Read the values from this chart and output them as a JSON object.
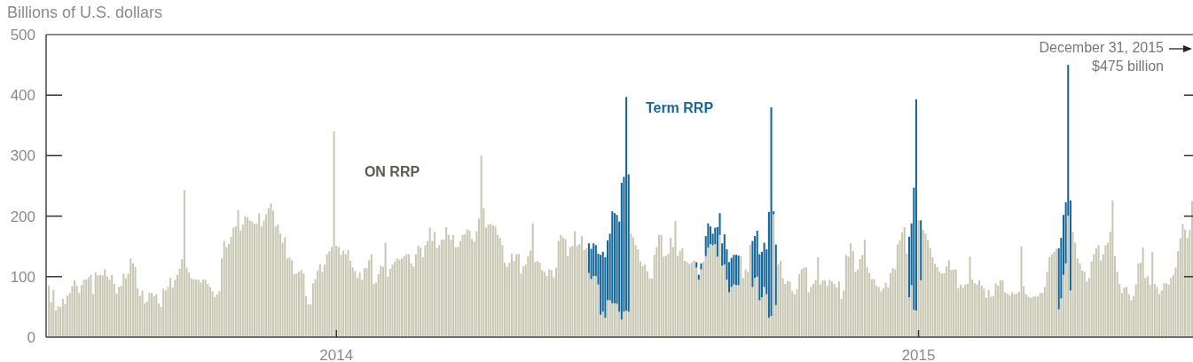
{
  "chart_data": {
    "type": "bar",
    "stacked": true,
    "ylabel": "Billions of U.S. dollars",
    "annotations": [
      "December 31, 2015\n$475 billion"
    ],
    "ylim": [
      0,
      500
    ],
    "yticks": [
      0,
      100,
      200,
      300,
      400,
      500
    ],
    "categories": [
      null,
      null,
      null,
      null,
      null,
      null,
      null,
      null,
      null,
      null,
      null,
      null,
      null,
      null,
      null,
      null,
      null,
      null,
      null,
      null,
      null,
      null,
      null,
      null,
      null,
      null,
      null,
      null,
      null,
      null,
      null,
      null,
      null,
      null,
      null,
      null,
      null,
      null,
      null,
      null,
      null,
      null,
      null,
      null,
      null,
      null,
      null,
      null,
      null,
      null,
      null,
      null,
      null,
      null,
      null,
      null,
      null,
      null,
      null,
      null,
      null,
      null,
      null,
      null,
      null,
      null,
      null,
      null,
      null,
      null,
      null,
      null,
      null,
      null,
      null,
      null,
      null,
      null,
      null,
      null,
      null,
      null,
      null,
      null,
      null,
      null,
      null,
      null,
      null,
      null,
      null,
      null,
      null,
      null,
      null,
      null,
      null,
      null,
      null,
      null,
      null,
      null,
      null,
      null,
      null,
      null,
      null,
      null,
      null,
      null,
      null,
      null,
      null,
      null,
      null,
      null,
      null,
      null,
      null,
      null,
      null,
      null,
      null,
      "2014",
      null,
      null,
      null,
      null,
      null,
      null,
      null,
      null,
      null,
      null,
      null,
      null,
      null,
      null,
      null,
      null,
      null,
      null,
      null,
      null,
      null,
      null,
      null,
      null,
      null,
      null,
      null,
      null,
      null,
      null,
      null,
      null,
      null,
      null,
      null,
      null,
      null,
      null,
      null,
      null,
      null,
      null,
      null,
      null,
      null,
      null,
      null,
      null,
      null,
      null,
      null,
      null,
      null,
      null,
      null,
      null,
      null,
      null,
      null,
      null,
      null,
      null,
      null,
      null,
      null,
      null,
      null,
      null,
      null,
      null,
      null,
      null,
      null,
      null,
      null,
      null,
      null,
      null,
      null,
      null,
      null,
      null,
      null,
      null,
      null,
      null,
      null,
      null,
      null,
      null,
      null,
      null,
      null,
      null,
      null,
      null,
      null,
      null,
      null,
      null,
      null,
      null,
      null,
      null,
      null,
      null,
      null,
      null,
      null,
      null,
      null,
      null,
      null,
      null,
      null,
      null,
      null,
      null,
      null,
      null,
      null,
      null,
      null,
      null,
      null,
      null,
      null,
      null,
      null,
      null,
      null,
      null,
      null,
      null,
      null,
      null,
      null,
      null,
      null,
      null,
      null,
      null,
      null,
      null,
      null,
      null,
      null,
      null,
      null,
      null,
      null,
      null,
      null,
      null,
      null,
      null,
      null,
      null,
      null,
      null,
      null,
      null,
      null,
      null,
      null,
      null,
      null,
      null,
      null,
      null,
      null,
      null,
      null,
      null,
      null,
      null,
      null,
      null,
      null,
      null,
      null,
      null,
      null,
      null,
      null,
      null,
      null,
      null,
      null,
      null,
      null,
      null,
      null,
      null,
      null,
      null,
      null,
      null,
      null,
      null,
      null,
      null,
      null,
      null,
      null,
      null,
      null,
      null,
      null,
      null,
      null,
      null,
      null,
      null,
      null,
      null,
      null,
      null,
      null,
      null,
      null,
      null,
      null,
      null,
      null,
      null,
      null,
      null,
      null,
      null,
      null,
      null,
      null,
      null,
      null,
      null,
      null,
      null,
      null,
      null,
      null,
      null,
      null,
      null,
      null,
      null,
      null,
      null,
      "2015",
      null,
      null,
      null,
      null,
      null,
      null,
      null,
      null,
      null,
      null,
      null,
      null,
      null,
      null,
      null,
      null,
      null,
      null,
      null,
      null,
      null,
      null,
      null,
      null,
      null,
      null,
      null,
      null,
      null,
      null,
      null,
      null,
      null,
      null,
      null,
      null,
      null,
      null,
      null,
      null,
      null,
      null,
      null,
      null,
      null,
      null,
      null,
      null,
      null,
      null,
      null,
      null,
      null,
      null,
      null,
      null,
      null,
      null,
      null,
      null,
      null,
      null,
      null,
      null,
      null,
      null,
      null,
      null,
      null,
      null,
      null,
      null,
      null,
      null,
      null,
      null,
      null,
      null,
      null,
      null,
      null,
      null,
      null,
      null,
      null,
      null,
      null,
      null,
      null,
      null,
      null,
      null,
      null,
      null,
      null,
      null,
      null,
      null,
      null,
      null,
      null,
      null,
      null,
      null,
      null,
      null,
      null,
      null,
      null,
      null,
      null,
      null,
      null,
      null,
      null,
      null,
      null
    ],
    "series": [
      {
        "name": "ON RRP",
        "color": "#c8c8b4",
        "values": [
          85,
          58,
          78,
          44,
          51,
          50,
          63,
          55,
          69,
          73,
          84,
          94,
          85,
          73,
          86,
          95,
          95,
          99,
          103,
          71,
          107,
          102,
          103,
          102,
          112,
          100,
          95,
          103,
          88,
          72,
          83,
          85,
          105,
          97,
          105,
          130,
          122,
          116,
          81,
          68,
          77,
          56,
          59,
          73,
          73,
          68,
          71,
          56,
          50,
          80,
          77,
          83,
          98,
          82,
          95,
          103,
          113,
          129,
          243,
          115,
          107,
          97,
          95,
          95,
          95,
          90,
          95,
          95,
          88,
          83,
          76,
          66,
          71,
          76,
          130,
          159,
          149,
          154,
          166,
          181,
          183,
          210,
          176,
          186,
          200,
          198,
          193,
          191,
          187,
          188,
          205,
          183,
          193,
          203,
          213,
          221,
          209,
          183,
          186,
          171,
          156,
          165,
          130,
          132,
          127,
          104,
          105,
          108,
          111,
          105,
          68,
          54,
          54,
          89,
          96,
          110,
          121,
          108,
          120,
          137,
          142,
          149,
          340,
          151,
          149,
          136,
          143,
          137,
          144,
          126,
          115,
          109,
          98,
          107,
          95,
          114,
          114,
          127,
          137,
          88,
          90,
          104,
          118,
          116,
          156,
          100,
          113,
          120,
          125,
          130,
          128,
          130,
          134,
          137,
          137,
          122,
          117,
          137,
          151,
          148,
          132,
          152,
          159,
          181,
          159,
          174,
          147,
          152,
          161,
          161,
          182,
          169,
          161,
          169,
          149,
          149,
          159,
          169,
          170,
          178,
          176,
          162,
          158,
          175,
          196,
          300,
          213,
          181,
          186,
          187,
          185,
          183,
          169,
          164,
          152,
          123,
          116,
          123,
          138,
          126,
          137,
          138,
          105,
          117,
          120,
          134,
          143,
          188,
          124,
          126,
          123,
          111,
          108,
          101,
          112,
          111,
          99,
          115,
          159,
          169,
          165,
          162,
          134,
          149,
          151,
          175,
          151,
          154,
          167,
          144,
          147,
          106,
          96,
          101,
          101,
          87,
          37,
          42,
          32,
          61,
          61,
          56,
          56,
          55,
          42,
          29,
          42,
          44,
          42,
          171,
          165,
          152,
          145,
          125,
          117,
          120,
          109,
          97,
          97,
          136,
          149,
          169,
          169,
          133,
          135,
          138,
          164,
          149,
          192,
          134,
          142,
          147,
          126,
          124,
          121,
          123,
          127,
          115,
          95,
          112,
          125,
          134,
          148,
          154,
          152,
          154,
          133,
          169,
          118,
          120,
          95,
          74,
          83,
          87,
          86,
          86,
          134,
          98,
          112,
          108,
          153,
          83,
          98,
          100,
          61,
          66,
          83,
          71,
          32,
          35,
          203,
          53,
          120,
          126,
          97,
          88,
          93,
          92,
          76,
          71,
          79,
          104,
          112,
          115,
          115,
          74,
          83,
          88,
          94,
          132,
          87,
          94,
          94,
          85,
          95,
          92,
          88,
          82,
          92,
          63,
          77,
          136,
          133,
          155,
          142,
          108,
          112,
          129,
          136,
          161,
          116,
          106,
          96,
          96,
          85,
          83,
          76,
          81,
          90,
          82,
          106,
          114,
          112,
          153,
          160,
          173,
          182,
          138,
          66,
          86,
          45,
          44,
          193,
          94,
          177,
          171,
          160,
          147,
          132,
          121,
          116,
          108,
          105,
          106,
          117,
          127,
          111,
          112,
          112,
          81,
          87,
          82,
          87,
          88,
          133,
          95,
          89,
          87,
          94,
          85,
          80,
          65,
          78,
          67,
          68,
          89,
          85,
          94,
          94,
          74,
          72,
          69,
          74,
          71,
          72,
          75,
          150,
          84,
          71,
          67,
          65,
          67,
          68,
          67,
          73,
          73,
          83,
          108,
          132,
          137,
          141,
          146,
          46,
          64,
          103,
          122,
          201,
          77,
          174,
          156,
          130,
          122,
          110,
          108,
          92,
          98,
          125,
          137,
          147,
          152,
          127,
          137,
          152,
          156,
          174,
          226,
          134,
          108,
          88,
          73,
          82,
          83,
          71,
          61,
          68,
          87,
          122,
          123,
          148,
          98,
          101,
          87,
          141,
          88,
          83,
          71,
          77,
          89,
          89,
          87,
          98,
          103,
          115,
          142,
          163,
          187,
          178,
          164,
          177,
          225
        ]
      },
      {
        "name": "Term RRP",
        "color": "#15679a",
        "values": [
          null,
          null,
          null,
          null,
          null,
          null,
          null,
          null,
          null,
          null,
          null,
          null,
          null,
          null,
          null,
          null,
          null,
          null,
          null,
          null,
          null,
          null,
          null,
          null,
          null,
          null,
          null,
          null,
          null,
          null,
          null,
          null,
          null,
          null,
          null,
          null,
          null,
          null,
          null,
          null,
          null,
          null,
          null,
          null,
          null,
          null,
          null,
          null,
          null,
          null,
          null,
          null,
          null,
          null,
          null,
          null,
          null,
          null,
          null,
          null,
          null,
          null,
          null,
          null,
          null,
          null,
          null,
          null,
          null,
          null,
          null,
          null,
          null,
          null,
          null,
          null,
          null,
          null,
          null,
          null,
          null,
          null,
          null,
          null,
          null,
          null,
          null,
          null,
          null,
          null,
          null,
          null,
          null,
          null,
          null,
          null,
          null,
          null,
          null,
          null,
          null,
          null,
          null,
          null,
          null,
          null,
          null,
          null,
          null,
          null,
          null,
          null,
          null,
          null,
          null,
          null,
          null,
          null,
          null,
          null,
          null,
          null,
          null,
          null,
          null,
          null,
          null,
          null,
          null,
          null,
          null,
          null,
          null,
          null,
          null,
          null,
          null,
          null,
          null,
          null,
          null,
          null,
          null,
          null,
          null,
          null,
          null,
          null,
          null,
          null,
          null,
          null,
          null,
          null,
          null,
          null,
          null,
          null,
          null,
          null,
          null,
          null,
          null,
          null,
          null,
          null,
          null,
          null,
          null,
          null,
          null,
          null,
          null,
          null,
          null,
          null,
          null,
          null,
          null,
          null,
          null,
          null,
          null,
          null,
          null,
          null,
          null,
          null,
          null,
          null,
          null,
          null,
          null,
          null,
          null,
          null,
          null,
          null,
          null,
          null,
          null,
          null,
          null,
          null,
          null,
          null,
          null,
          null,
          null,
          null,
          null,
          null,
          null,
          null,
          null,
          null,
          null,
          null,
          null,
          null,
          null,
          null,
          null,
          null,
          null,
          null,
          null,
          null,
          null,
          null,
          null,
          49,
          50,
          54,
          51,
          51,
          99,
          99,
          100,
          99,
          110,
          152,
          149,
          147,
          149,
          226,
          223,
          353,
          227,
          null,
          null,
          null,
          null,
          null,
          null,
          null,
          null,
          null,
          null,
          null,
          null,
          null,
          null,
          null,
          null,
          null,
          null,
          null,
          null,
          null,
          null,
          null,
          null,
          null,
          null,
          null,
          null,
          9,
          8,
          10,
          null,
          33,
          40,
          29,
          19,
          27,
          49,
          36,
          37,
          50,
          50,
          50,
          48,
          49,
          50,
          49,
          null,
          null,
          null,
          null,
          null,
          76,
          69,
          76,
          76,
          75,
          73,
          74,
          175,
          345,
          5,
          100,
          null,
          null,
          null,
          null,
          null,
          null,
          null,
          null,
          null,
          null,
          null,
          null,
          null,
          null,
          null,
          null,
          null,
          null,
          null,
          null,
          null,
          null,
          null,
          null,
          null,
          null,
          null,
          null,
          null,
          null,
          null,
          null,
          null,
          null,
          null,
          null,
          null,
          null,
          null,
          null,
          null,
          null,
          null,
          null,
          null,
          null,
          null,
          null,
          null,
          null,
          null,
          null,
          null,
          null,
          null,
          null,
          100,
          102,
          202,
          349,
          null,
          99,
          null,
          null,
          null,
          null,
          null,
          null,
          null,
          null,
          null,
          null,
          null,
          null,
          null,
          null,
          null,
          null,
          null,
          null,
          null,
          null,
          null,
          null,
          null,
          null,
          null,
          null,
          null,
          null,
          null,
          null,
          null,
          null,
          null,
          null,
          null,
          null,
          null,
          null,
          null,
          null,
          null,
          null,
          null,
          null,
          null,
          null,
          null,
          null,
          null,
          null,
          null,
          null,
          null,
          null,
          null,
          null,
          null,
          null,
          101,
          100,
          99,
          101,
          249,
          149,
          null,
          null,
          null,
          null,
          null,
          null,
          null,
          null,
          null,
          null,
          null,
          null,
          null,
          null,
          null,
          null,
          null,
          null,
          null,
          null,
          null,
          null,
          null,
          null,
          null,
          null,
          null,
          null,
          null,
          null,
          null,
          null,
          null,
          null,
          null,
          null,
          null,
          null,
          null,
          null,
          null,
          null,
          null,
          null,
          null,
          null,
          null,
          null,
          null,
          null,
          null,
          null
        ]
      }
    ]
  }
}
